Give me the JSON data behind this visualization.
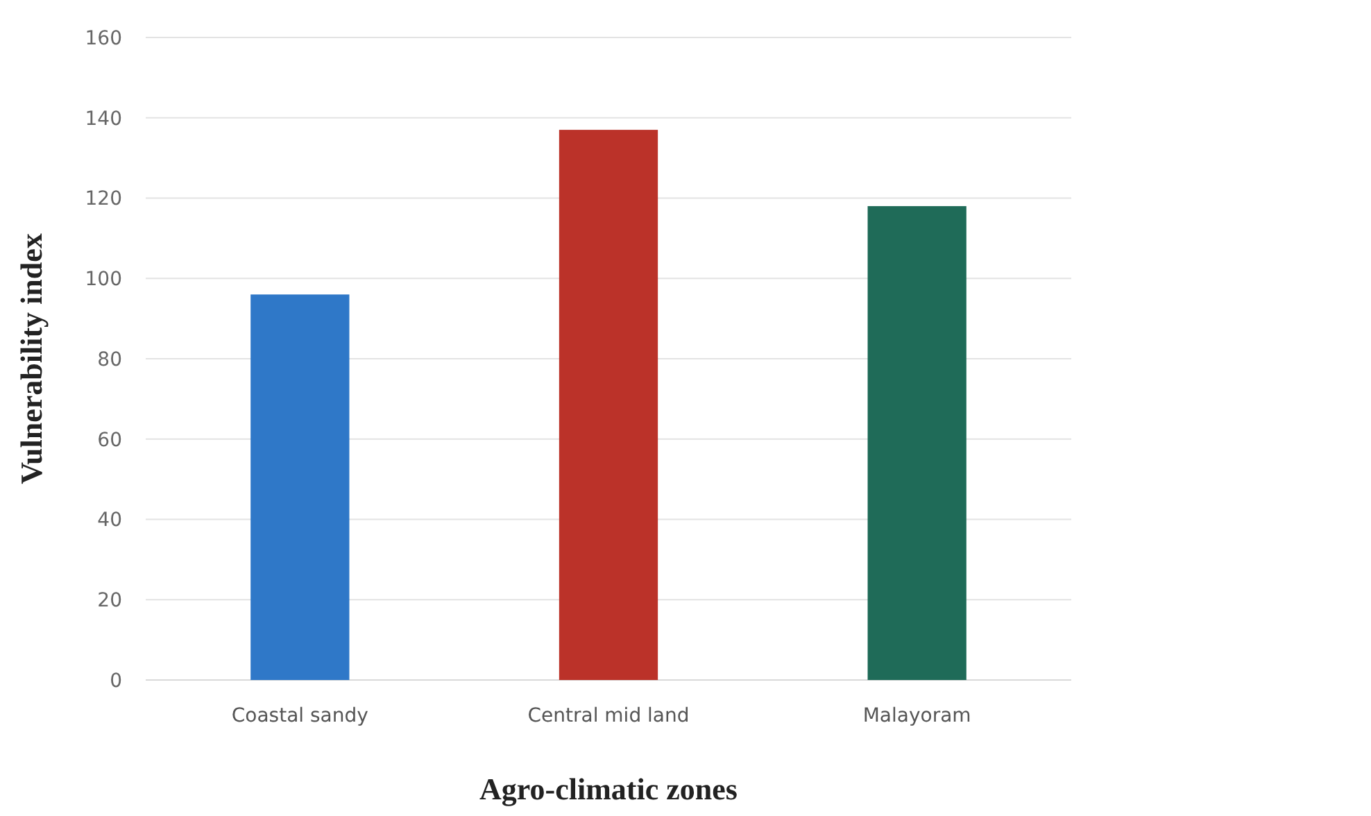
{
  "chart_data": {
    "type": "bar",
    "xlabel": "Agro-climatic zones",
    "ylabel": "Vulnerability index",
    "categories": [
      "Coastal sandy",
      "Central mid land",
      "Malayoram"
    ],
    "values": [
      96,
      137,
      118
    ],
    "colors": [
      "#2f78c8",
      "#bb3229",
      "#1f6b58"
    ],
    "ylim": [
      0,
      160
    ],
    "yticks": [
      0,
      20,
      40,
      60,
      80,
      100,
      120,
      140,
      160
    ],
    "grid": "y"
  }
}
